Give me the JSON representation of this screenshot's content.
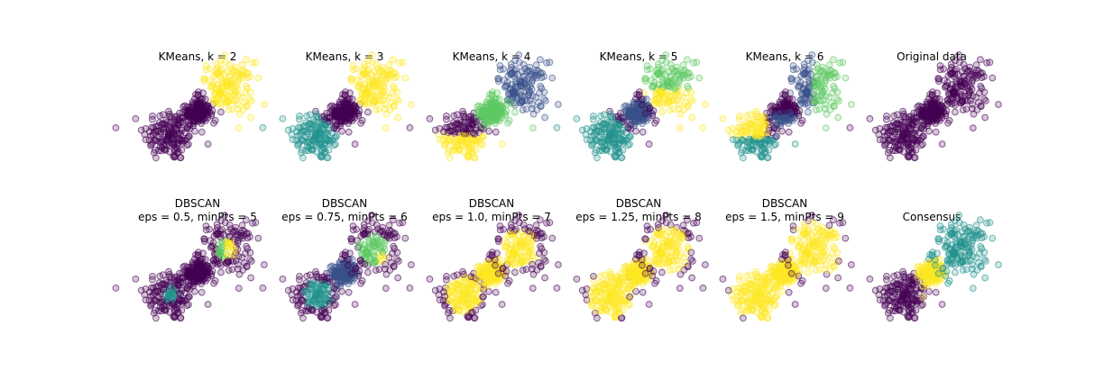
{
  "palette": {
    "c0": "#440154",
    "c1": "#3b528b",
    "c2": "#21918c",
    "c3": "#5ec962",
    "c4": "#fde725"
  },
  "chart_data": [
    {
      "type": "scatter",
      "title": [
        "KMeans, k = 2"
      ],
      "scheme": "kmeans2"
    },
    {
      "type": "scatter",
      "title": [
        "KMeans, k = 3"
      ],
      "scheme": "kmeans3"
    },
    {
      "type": "scatter",
      "title": [
        "KMeans, k = 4"
      ],
      "scheme": "kmeans4"
    },
    {
      "type": "scatter",
      "title": [
        "KMeans, k = 5"
      ],
      "scheme": "kmeans5"
    },
    {
      "type": "scatter",
      "title": [
        "KMeans, k = 6"
      ],
      "scheme": "kmeans6"
    },
    {
      "type": "scatter",
      "title": [
        "Original data"
      ],
      "scheme": "original"
    },
    {
      "type": "scatter",
      "title": [
        "DBSCAN",
        "eps = 0.5, minPts = 5"
      ],
      "scheme": "db05"
    },
    {
      "type": "scatter",
      "title": [
        "DBSCAN",
        "eps = 0.75, minPts = 6"
      ],
      "scheme": "db075"
    },
    {
      "type": "scatter",
      "title": [
        "DBSCAN",
        "eps = 1.0, minPts = 7"
      ],
      "scheme": "db10"
    },
    {
      "type": "scatter",
      "title": [
        "DBSCAN",
        "eps = 1.25, minPts = 8"
      ],
      "scheme": "db125"
    },
    {
      "type": "scatter",
      "title": [
        "DBSCAN",
        "eps = 1.5, minPts = 9"
      ],
      "scheme": "db15"
    },
    {
      "type": "scatter",
      "title": [
        "Consensus"
      ],
      "scheme": "consensus"
    }
  ]
}
